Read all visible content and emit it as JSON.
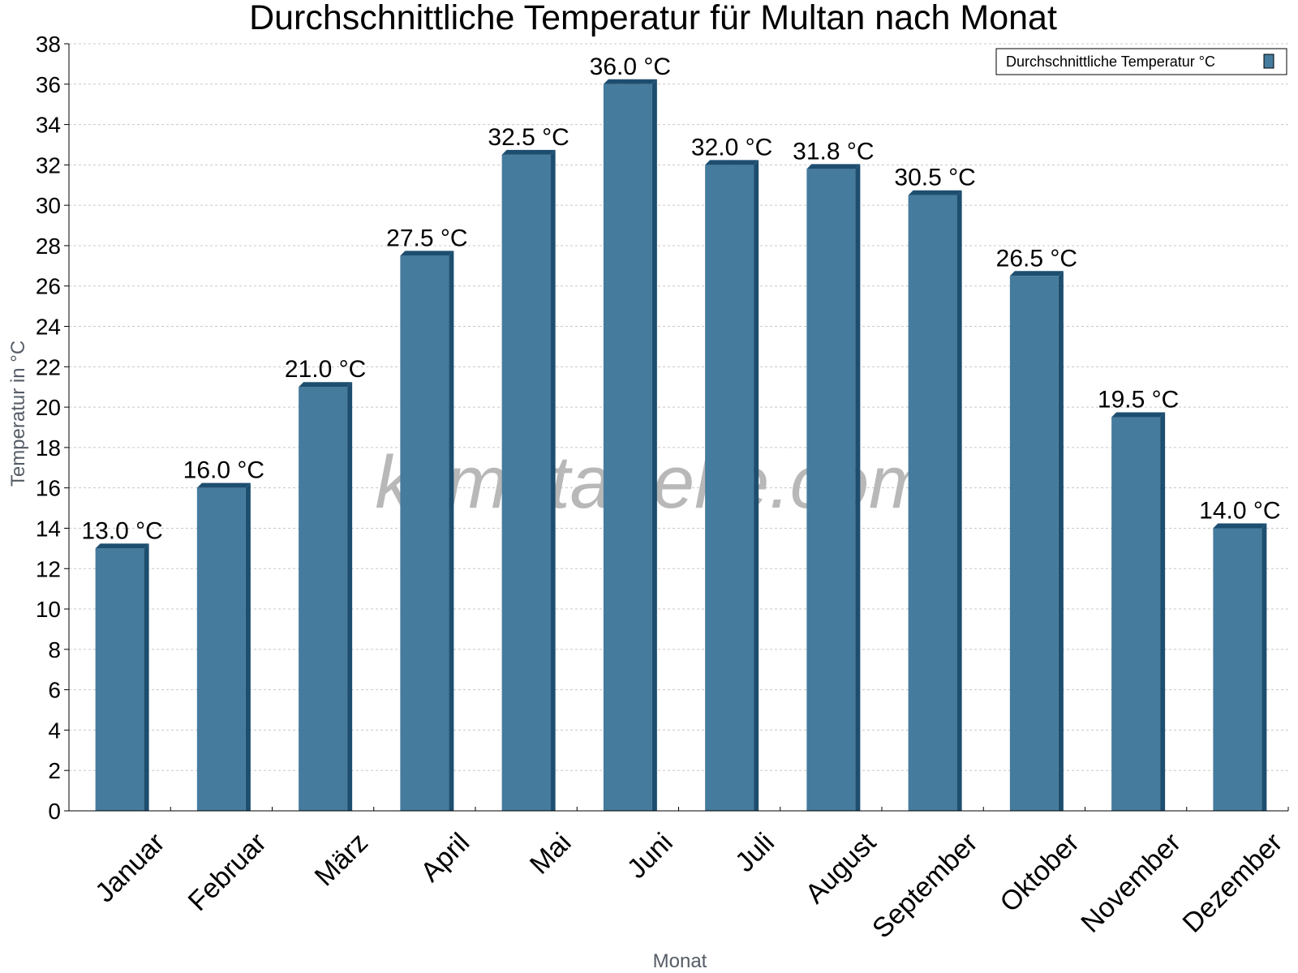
{
  "chart_data": {
    "type": "bar",
    "title": "Durchschnittliche Temperatur für Multan nach Monat",
    "xlabel": "Monat",
    "ylabel": "Temperatur in °C",
    "categories": [
      "Januar",
      "Februar",
      "März",
      "April",
      "Mai",
      "Juni",
      "Juli",
      "August",
      "September",
      "Oktober",
      "November",
      "Dezember"
    ],
    "series": [
      {
        "name": "Durchschnittliche Temperatur °C",
        "values": [
          13.0,
          16.0,
          21.0,
          27.5,
          32.5,
          36.0,
          32.0,
          31.8,
          30.5,
          26.5,
          19.5,
          14.0
        ],
        "labels": [
          "13.0 °C",
          "16.0 °C",
          "21.0 °C",
          "27.5 °C",
          "32.5 °C",
          "36.0 °C",
          "32.0 °C",
          "31.8 °C",
          "30.5 °C",
          "26.5 °C",
          "19.5 °C",
          "14.0 °C"
        ]
      }
    ],
    "ylim": [
      0,
      38
    ],
    "ytick_step": 2,
    "grid": true,
    "legend": "top-right",
    "watermark": "klimatabelle.com",
    "colors": {
      "bar_face": "#457b9d",
      "bar_side": "#1d4e6f",
      "grid": "#c8c8c8",
      "axis": "#000000"
    }
  }
}
